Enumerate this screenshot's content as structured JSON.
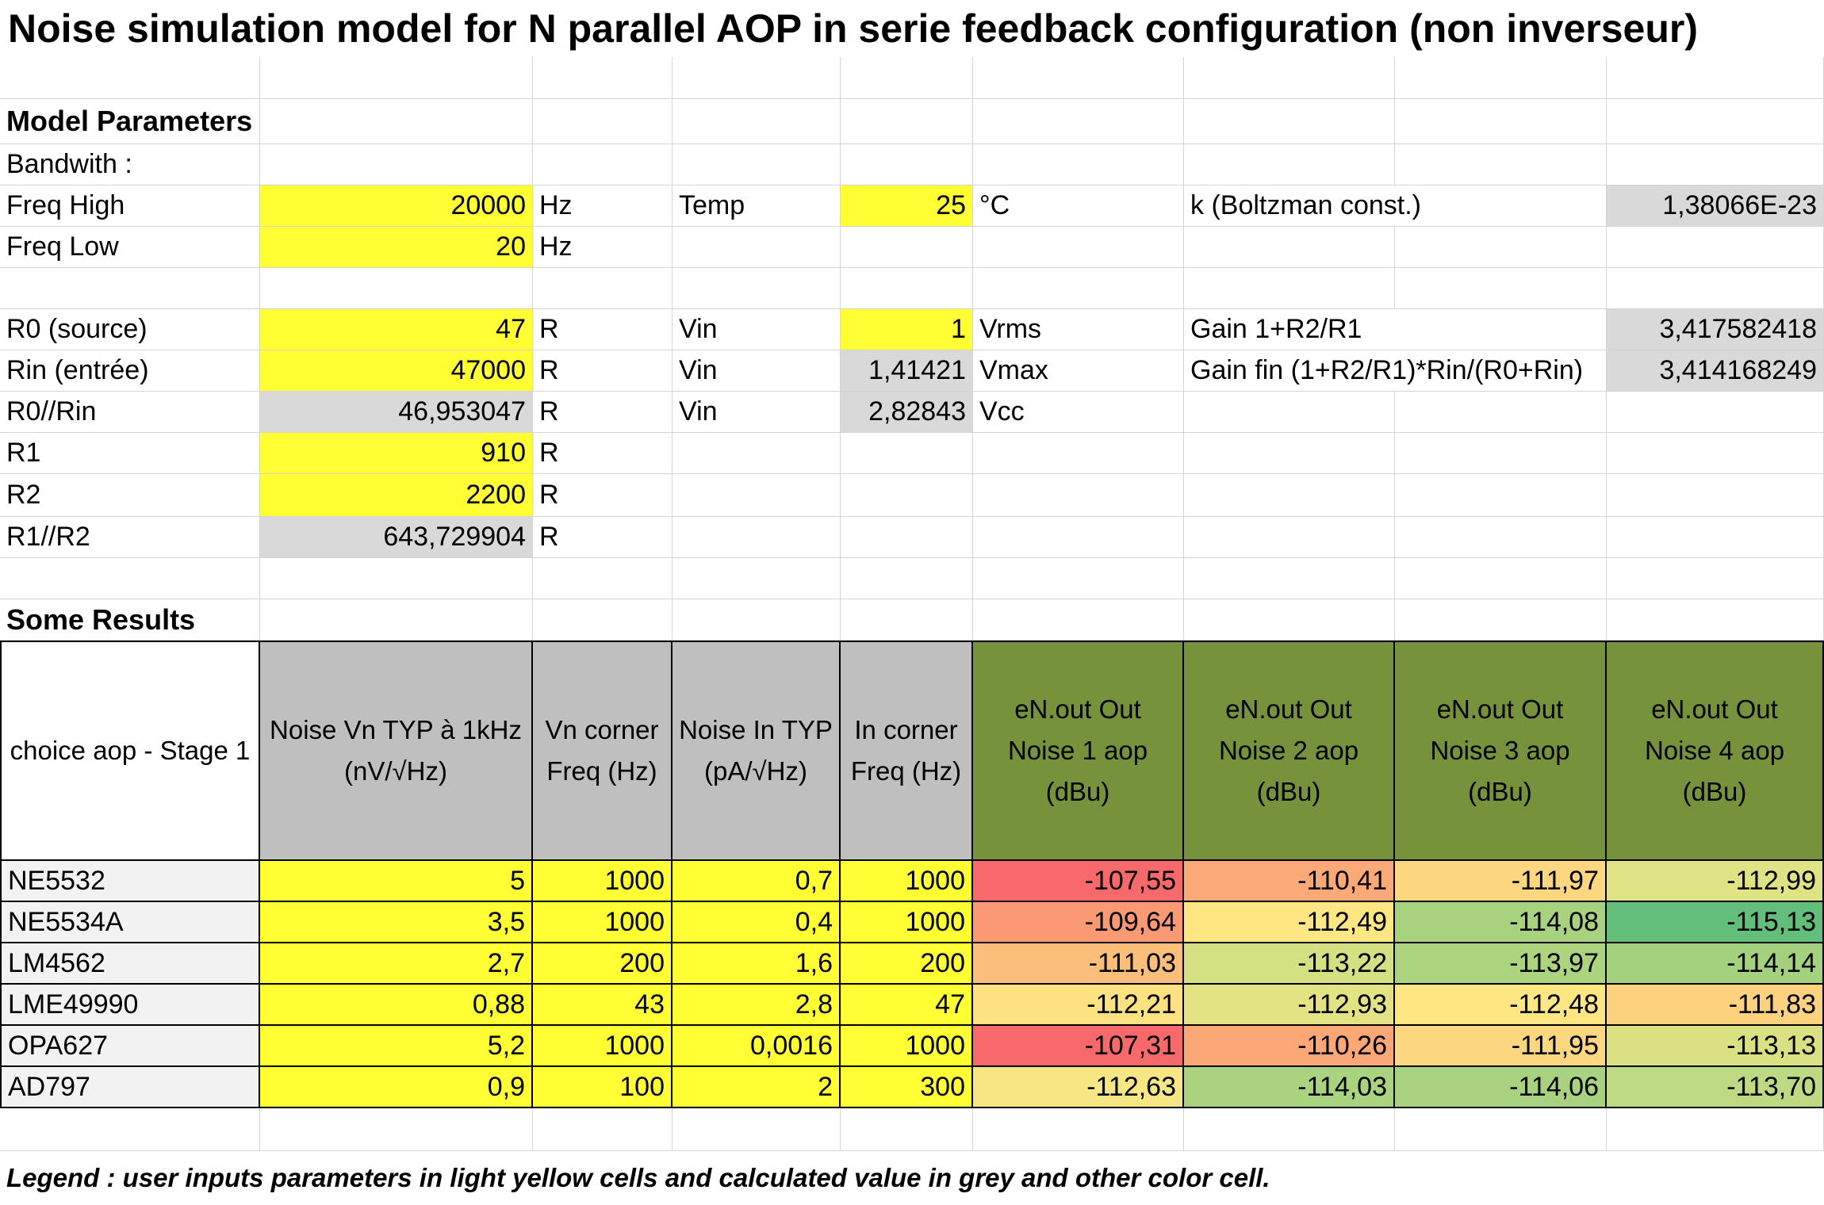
{
  "title": "Noise simulation model for N parallel AOP in serie feedback configuration (non inverseur)",
  "colors": {
    "input_yellow": "#ffff33",
    "calc_grey": "#d9d9d9",
    "header_grey": "#bfbfbf",
    "header_green": "#76933c",
    "name_bg": "#f2f2f2"
  },
  "params": {
    "section_title": "Model Parameters",
    "bandwidth_label": "Bandwith :",
    "freq_high": {
      "label": "Freq High",
      "value": "20000",
      "unit": "Hz"
    },
    "freq_low": {
      "label": "Freq Low",
      "value": "20",
      "unit": "Hz"
    },
    "temp": {
      "label": "Temp",
      "value": "25",
      "unit": "°C"
    },
    "boltzmann": {
      "label": "k (Boltzman const.)",
      "value": "1,38066E-23"
    },
    "r0": {
      "label": "R0 (source)",
      "value": "47",
      "unit": "R"
    },
    "rin": {
      "label": "Rin (entrée)",
      "value": "47000",
      "unit": "R"
    },
    "r0_rin": {
      "label": "R0//Rin",
      "value": "46,953047",
      "unit": "R"
    },
    "r1": {
      "label": "R1",
      "value": "910",
      "unit": "R"
    },
    "r2": {
      "label": "R2",
      "value": "2200",
      "unit": "R"
    },
    "r1_r2": {
      "label": "R1//R2",
      "value": "643,729904",
      "unit": "R"
    },
    "vin_rms": {
      "label": "Vin",
      "value": "1",
      "unit": "Vrms"
    },
    "vin_max": {
      "label": "Vin",
      "value": "1,41421",
      "unit": "Vmax"
    },
    "vin_cc": {
      "label": "Vin",
      "value": "2,82843",
      "unit": "Vcc"
    },
    "gain": {
      "label": "Gain 1+R2/R1",
      "value": "3,417582418"
    },
    "gain_fin": {
      "label": "Gain fin  (1+R2/R1)*Rin/(R0+Rin)",
      "value": "3,414168249"
    }
  },
  "results": {
    "section_title": "Some Results",
    "headers": [
      "choice aop - Stage 1",
      "Noise Vn TYP à 1kHz (nV/√Hz)",
      "Vn corner Freq (Hz)",
      "Noise In TYP (pA/√Hz)",
      "In corner Freq (Hz)",
      "eN.out Out Noise 1 aop (dBu)",
      "eN.out Out Noise 2 aop (dBu)",
      "eN.out Out Noise 3 aop (dBu)",
      "eN.out Out Noise 4 aop (dBu)"
    ],
    "rows": [
      {
        "name": "NE5532",
        "vn": "5",
        "vn_corner": "1000",
        "in": "0,7",
        "in_corner": "1000",
        "out": [
          "-107,55",
          "-110,41",
          "-111,97",
          "-112,99"
        ],
        "out_colors": [
          "#f8696b",
          "#fbaa77",
          "#fdd680",
          "#e0e383"
        ]
      },
      {
        "name": "NE5534A",
        "vn": "3,5",
        "vn_corner": "1000",
        "in": "0,4",
        "in_corner": "1000",
        "out": [
          "-109,64",
          "-112,49",
          "-114,08",
          "-115,13"
        ],
        "out_colors": [
          "#fa9974",
          "#fee783",
          "#a8d27f",
          "#63be7b"
        ]
      },
      {
        "name": "LM4562",
        "vn": "2,7",
        "vn_corner": "200",
        "in": "1,6",
        "in_corner": "200",
        "out": [
          "-111,03",
          "-113,22",
          "-113,97",
          "-114,14"
        ],
        "out_colors": [
          "#fcbf7b",
          "#d4e082",
          "#acd47f",
          "#a4d17e"
        ]
      },
      {
        "name": "LME49990",
        "vn": "0,88",
        "vn_corner": "43",
        "in": "2,8",
        "in_corner": "47",
        "out": [
          "-112,21",
          "-112,93",
          "-112,48",
          "-111,83"
        ],
        "out_colors": [
          "#fee282",
          "#e4e383",
          "#fee683",
          "#fdd27f"
        ]
      },
      {
        "name": "OPA627",
        "vn": "5,2",
        "vn_corner": "1000",
        "in": "0,0016",
        "in_corner": "1000",
        "out": [
          "-107,31",
          "-110,26",
          "-111,95",
          "-113,13"
        ],
        "out_colors": [
          "#f8696b",
          "#fba776",
          "#fdd680",
          "#d9e182"
        ]
      },
      {
        "name": "AD797",
        "vn": "0,9",
        "vn_corner": "100",
        "in": "2",
        "in_corner": "300",
        "out": [
          "-112,63",
          "-114,03",
          "-114,06",
          "-113,70"
        ],
        "out_colors": [
          "#f6e784",
          "#a9d37f",
          "#a8d27f",
          "#bdd981"
        ]
      }
    ]
  },
  "legend": "Legend : user inputs parameters in light yellow cells and calculated value in grey and other color cell."
}
